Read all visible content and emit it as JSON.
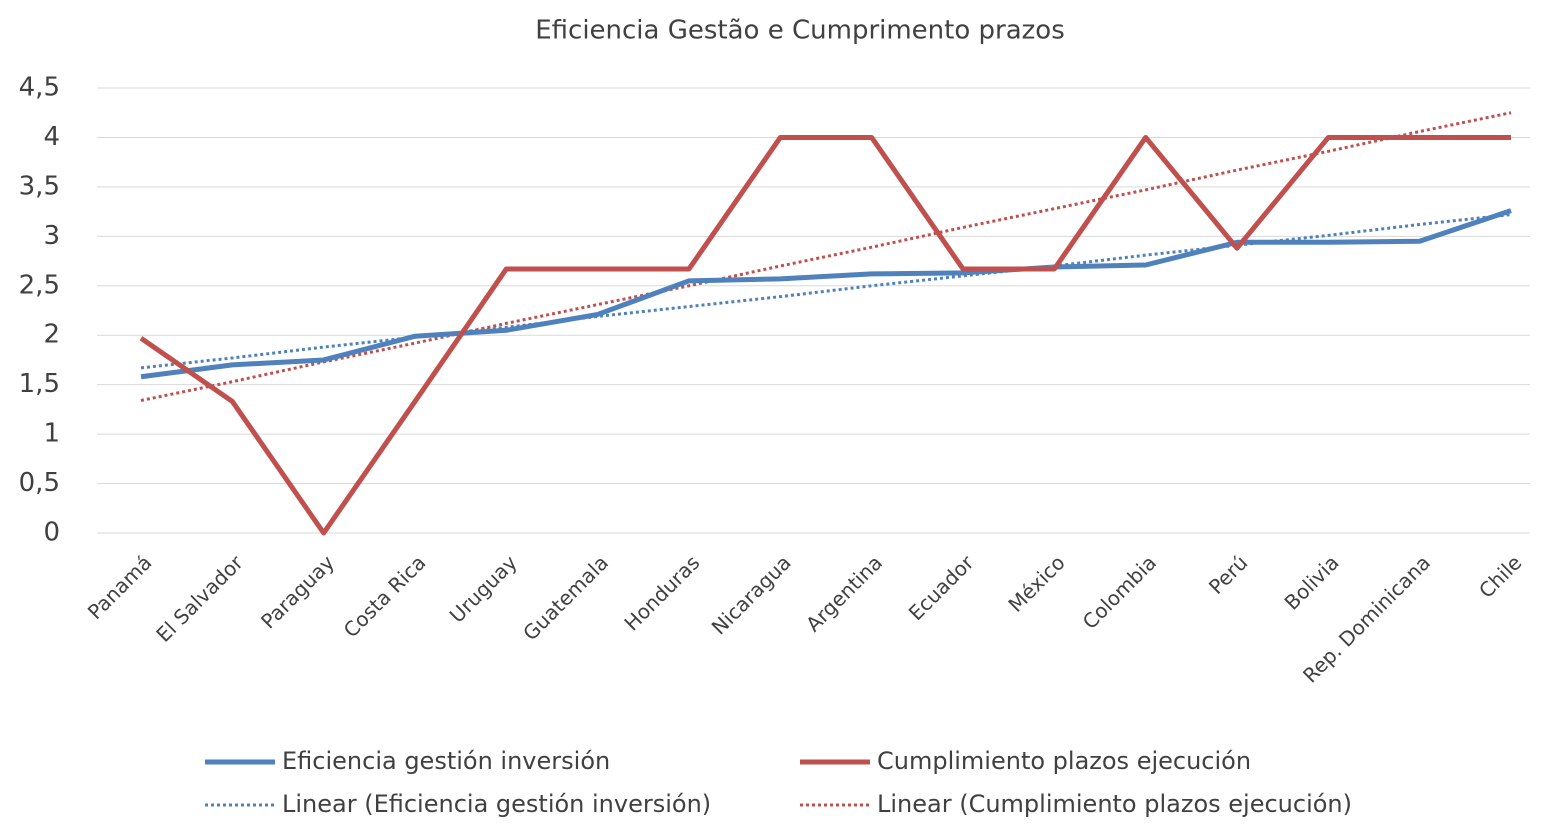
{
  "chart_data": {
    "type": "line",
    "title": "Eficiencia Gestão e Cumprimento prazos",
    "categories": [
      "Panamá",
      "El Salvador",
      "Paraguay",
      "Costa Rica",
      "Uruguay",
      "Guatemala",
      "Honduras",
      "Nicaragua",
      "Argentina",
      "Ecuador",
      "México",
      "Colombia",
      "Perú",
      "Bolivia",
      "Rep. Dominicana",
      "Chile"
    ],
    "series": [
      {
        "name": "Eficiencia gestión inversión",
        "color": "#4f81bd",
        "dash": false,
        "values": [
          1.58,
          1.7,
          1.75,
          1.99,
          2.05,
          2.21,
          2.55,
          2.57,
          2.62,
          2.63,
          2.69,
          2.71,
          2.94,
          2.94,
          2.95,
          3.26
        ]
      },
      {
        "name": "Cumplimiento plazos ejecución",
        "color": "#c0504d",
        "dash": false,
        "values": [
          1.97,
          1.33,
          0,
          1.33,
          2.67,
          2.67,
          2.67,
          4,
          4,
          2.67,
          2.67,
          4,
          2.88,
          4,
          4,
          4
        ]
      },
      {
        "name": "Linear (Eficiencia gestión inversión)",
        "color": "#4f81bd",
        "dash": true,
        "values": [
          1.67,
          1.77,
          1.88,
          1.98,
          2.08,
          2.19,
          2.29,
          2.39,
          2.5,
          2.6,
          2.7,
          2.81,
          2.91,
          3.01,
          3.12,
          3.22
        ]
      },
      {
        "name": "Linear (Cumplimiento plazos ejecución)",
        "color": "#c0504d",
        "dash": true,
        "values": [
          1.34,
          1.53,
          1.73,
          1.92,
          2.12,
          2.31,
          2.5,
          2.7,
          2.89,
          3.09,
          3.28,
          3.47,
          3.67,
          3.86,
          4.06,
          4.25
        ]
      }
    ],
    "ylim": [
      0,
      4.5
    ],
    "yticks": [
      0,
      {
        "value": 0.5,
        "label": "0,5"
      },
      1,
      {
        "value": 1.5,
        "label": "1,5"
      },
      2,
      {
        "value": 2.5,
        "label": "2,5"
      },
      3,
      {
        "value": 3.5,
        "label": "3,5"
      },
      4,
      {
        "value": 4.5,
        "label": "4,5"
      }
    ],
    "grid": true,
    "legend": "bottom"
  }
}
